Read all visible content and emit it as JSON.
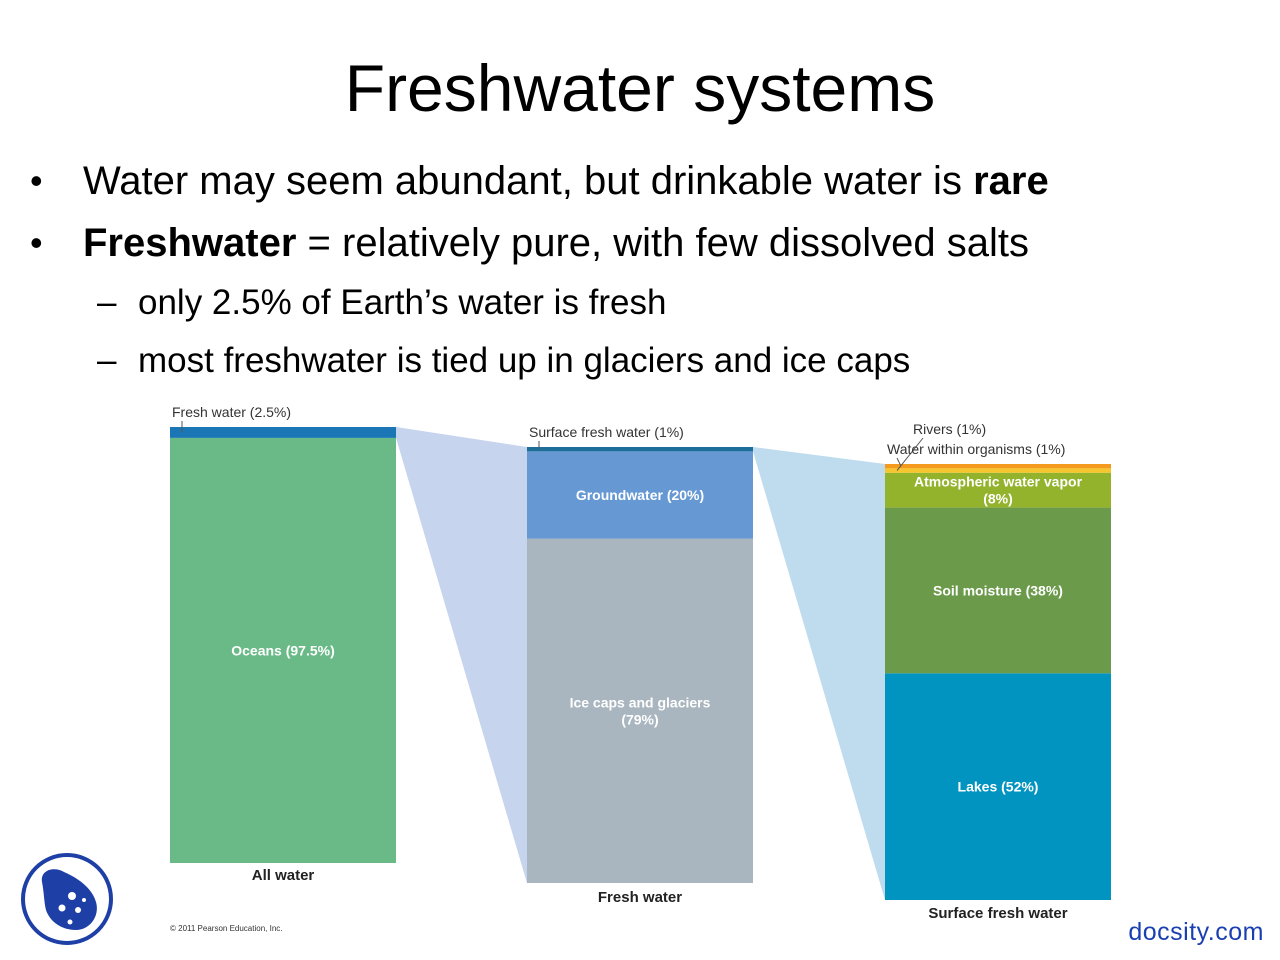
{
  "slide": {
    "title": "Freshwater systems",
    "bullets": [
      {
        "pre": "Water may seem abundant, but drinkable water is ",
        "bold": "rare",
        "post": ""
      },
      {
        "pre": "",
        "bold": "Freshwater",
        "post": " = relatively pure, with few dissolved salts"
      }
    ],
    "sub_bullets": [
      "only 2.5% of Earth’s water is fresh",
      "most freshwater is tied up in glaciers and ice caps"
    ],
    "bullet_symbol": "•",
    "dash_symbol": "–",
    "watermark": "docsity.com",
    "logo_icon": "docsity-logo-icon"
  },
  "chart_data": {
    "type": "bar",
    "subtype": "stacked-breakdown",
    "copyright": "© 2011 Pearson Education, Inc.",
    "columns": [
      {
        "label": "All water",
        "segments": [
          {
            "name": "Oceans",
            "value": 97.5,
            "label": "Oceans (97.5%)",
            "color": "#6aba88",
            "inside": true
          },
          {
            "name": "Fresh water",
            "value": 2.5,
            "label": "Fresh water (2.5%)",
            "color": "#1b76b5",
            "inside": false
          }
        ]
      },
      {
        "label": "Fresh water",
        "segments": [
          {
            "name": "Ice caps and glaciers",
            "value": 79,
            "label": "Ice caps and glaciers (79%)",
            "color": "#a9b6bf",
            "inside": true
          },
          {
            "name": "Groundwater",
            "value": 20,
            "label": "Groundwater (20%)",
            "color": "#6699d3",
            "inside": true
          },
          {
            "name": "Surface fresh water",
            "value": 1,
            "label": "Surface fresh water (1%)",
            "color": "#1d6f99",
            "inside": false
          }
        ]
      },
      {
        "label": "Surface fresh water",
        "segments": [
          {
            "name": "Lakes",
            "value": 52,
            "label": "Lakes (52%)",
            "color": "#0294c0",
            "inside": true
          },
          {
            "name": "Soil moisture",
            "value": 38,
            "label": "Soil moisture (38%)",
            "color": "#6a9a4a",
            "inside": true
          },
          {
            "name": "Atmospheric water vapor",
            "value": 8,
            "label": "Atmospheric water vapor (8%)",
            "color": "#94b32c",
            "inside": true
          },
          {
            "name": "Rivers",
            "value": 1,
            "label": "Rivers (1%)",
            "color": "#f7c62e",
            "inside": false
          },
          {
            "name": "Water within organisms",
            "value": 1,
            "label": "Water within organisms (1%)",
            "color": "#f39a1f",
            "inside": false
          }
        ]
      }
    ],
    "connector_colors": [
      "#c7d4ee",
      "#bfdcef"
    ]
  }
}
